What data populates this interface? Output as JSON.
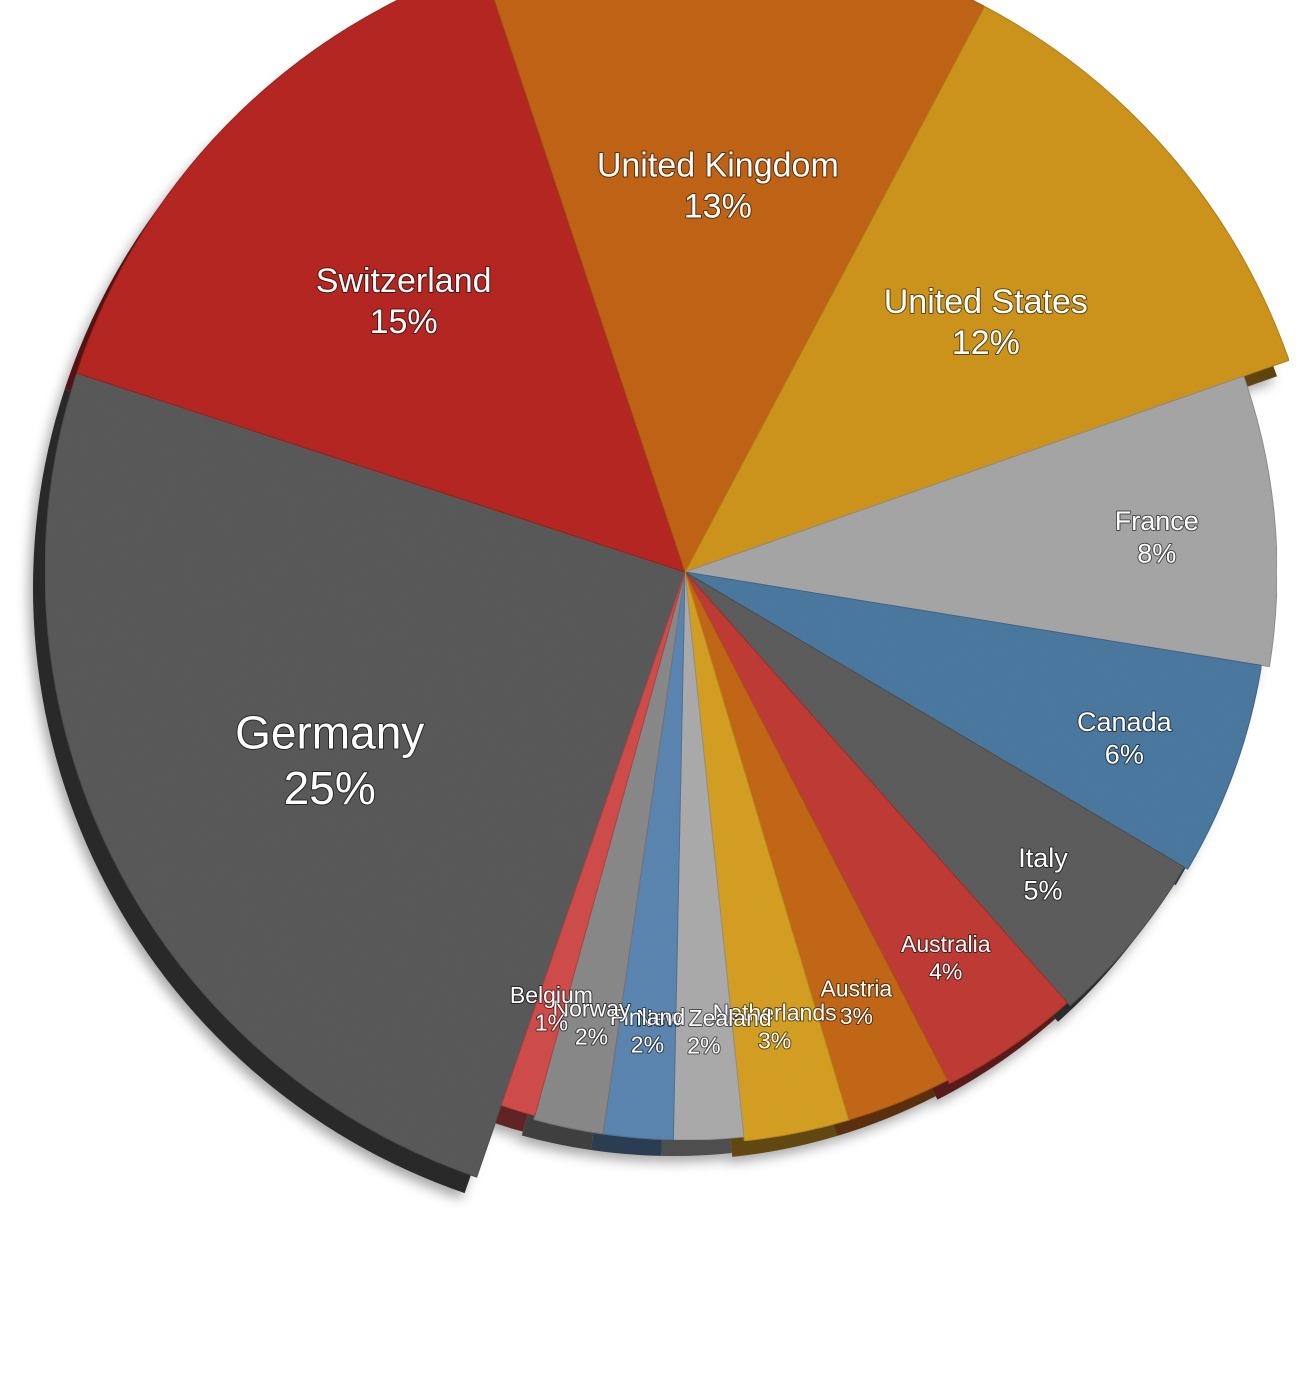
{
  "chart_data": {
    "type": "pie",
    "title": "",
    "value_suffix": "%",
    "slices": [
      {
        "label": "Germany",
        "value": 25,
        "color": "#5c5b5c"
      },
      {
        "label": "Switzerland",
        "value": 15,
        "color": "#b82b28"
      },
      {
        "label": "United Kingdom",
        "value": 13,
        "color": "#c3661d"
      },
      {
        "label": "United States",
        "value": 12,
        "color": "#d09620"
      },
      {
        "label": "France",
        "value": 8,
        "color": "#a9a8a8"
      },
      {
        "label": "Canada",
        "value": 6,
        "color": "#4e7aa1"
      },
      {
        "label": "Italy",
        "value": 5,
        "color": "#5f5e5f"
      },
      {
        "label": "Australia",
        "value": 4,
        "color": "#c23c39"
      },
      {
        "label": "Austria",
        "value": 3,
        "color": "#c5691f"
      },
      {
        "label": "Netherlands",
        "value": 3,
        "color": "#d7a127"
      },
      {
        "label": "New Zealand",
        "value": 2,
        "color": "#aeadad"
      },
      {
        "label": "Finland",
        "value": 2,
        "color": "#5d88b3"
      },
      {
        "label": "Norway",
        "value": 2,
        "color": "#8c8b8c"
      },
      {
        "label": "Belgium",
        "value": 1,
        "color": "#d2504e"
      }
    ]
  }
}
